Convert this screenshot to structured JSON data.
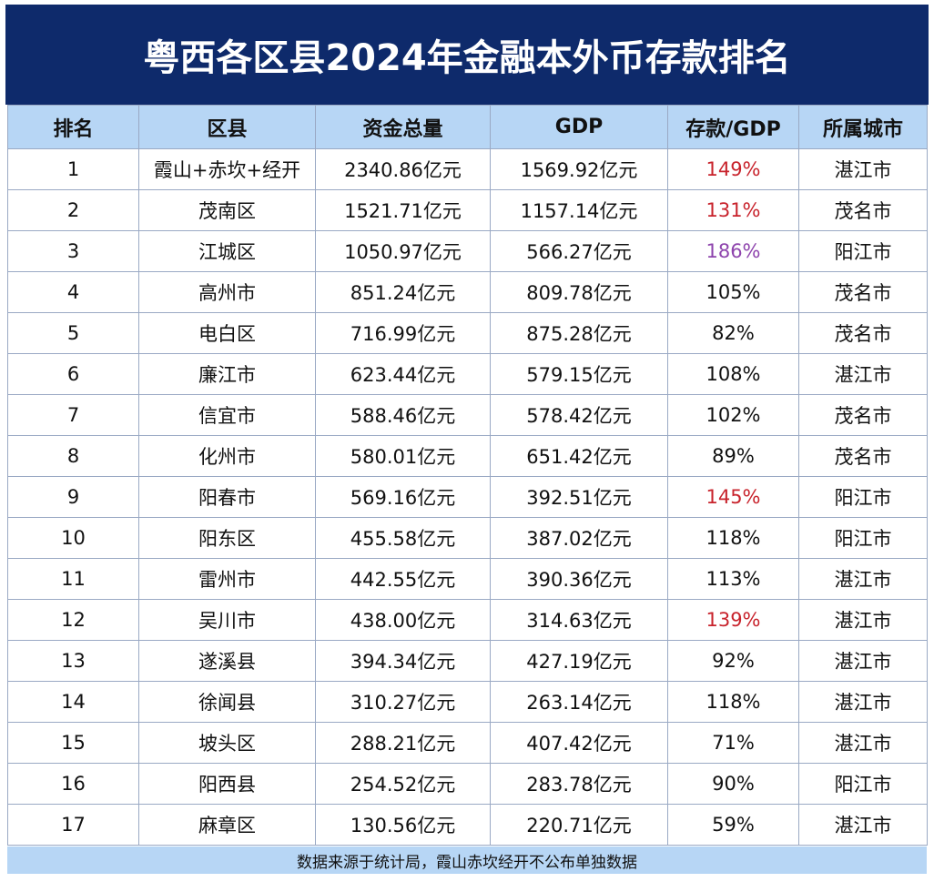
{
  "header": {
    "title": "粤西各区县2024年金融本外币存款排名"
  },
  "table": {
    "columns": [
      "排名",
      "区县",
      "资金总量",
      "GDP",
      "存款/GDP",
      "所属城市"
    ],
    "rows": [
      [
        "1",
        "霞山+赤坎+经开",
        "2340.86亿元",
        "1569.92亿元",
        "149%",
        "湛江市"
      ],
      [
        "2",
        "茂南区",
        "1521.71亿元",
        "1157.14亿元",
        "131%",
        "茂名市"
      ],
      [
        "3",
        "江城区",
        "1050.97亿元",
        "566.27亿元",
        "186%",
        "阳江市"
      ],
      [
        "4",
        "高州市",
        "851.24亿元",
        "809.78亿元",
        "105%",
        "茂名市"
      ],
      [
        "5",
        "电白区",
        "716.99亿元",
        "875.28亿元",
        "82%",
        "茂名市"
      ],
      [
        "6",
        "廉江市",
        "623.44亿元",
        "579.15亿元",
        "108%",
        "湛江市"
      ],
      [
        "7",
        "信宜市",
        "588.46亿元",
        "578.42亿元",
        "102%",
        "茂名市"
      ],
      [
        "8",
        "化州市",
        "580.01亿元",
        "651.42亿元",
        "89%",
        "茂名市"
      ],
      [
        "9",
        "阳春市",
        "569.16亿元",
        "392.51亿元",
        "145%",
        "阳江市"
      ],
      [
        "10",
        "阳东区",
        "455.58亿元",
        "387.02亿元",
        "118%",
        "阳江市"
      ],
      [
        "11",
        "雷州市",
        "442.55亿元",
        "390.36亿元",
        "113%",
        "湛江市"
      ],
      [
        "12",
        "吴川市",
        "438.00亿元",
        "314.63亿元",
        "139%",
        "湛江市"
      ],
      [
        "13",
        "遂溪县",
        "394.34亿元",
        "427.19亿元",
        "92%",
        "湛江市"
      ],
      [
        "14",
        "徐闻县",
        "310.27亿元",
        "263.14亿元",
        "118%",
        "湛江市"
      ],
      [
        "15",
        "坡头区",
        "288.21亿元",
        "407.42亿元",
        "71%",
        "湛江市"
      ],
      [
        "16",
        "阳西县",
        "254.52亿元",
        "283.78亿元",
        "90%",
        "阳江市"
      ],
      [
        "17",
        "麻章区",
        "130.56亿元",
        "220.71亿元",
        "59%",
        "湛江市"
      ]
    ],
    "highlights": [
      {
        "row": 0,
        "column": 4,
        "color": "#c8232c"
      },
      {
        "row": 1,
        "column": 4,
        "color": "#c8232c"
      },
      {
        "row": 2,
        "column": 4,
        "color": "#8e44ad"
      },
      {
        "row": 8,
        "column": 4,
        "color": "#c8232c"
      },
      {
        "row": 11,
        "column": 4,
        "color": "#c8232c"
      }
    ]
  },
  "footer": {
    "note": "数据来源于统计局，霞山赤坎经开不公布单独数据"
  }
}
